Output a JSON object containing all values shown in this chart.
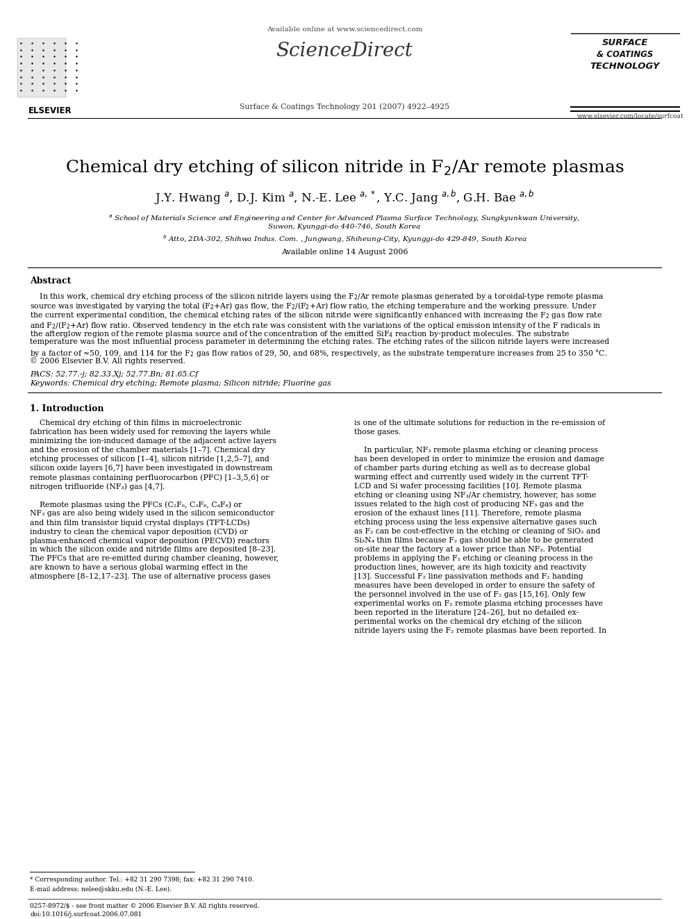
{
  "bg_color": "#ffffff",
  "sciencedirect_url": "Available online at www.sciencedirect.com",
  "journal": "Surface & Coatings Technology 201 (2007) 4922–4925",
  "elsevier_url": "www.elsevier.com/locate/surfcoat",
  "title": "Chemical dry etching of silicon nitride in F$_2$/Ar remote plasmas",
  "authors": "J.Y. Hwang $^a$, D.J. Kim $^a$, N.-E. Lee $^{a,*}$, Y.C. Jang $^{a,b}$, G.H. Bae $^{a,b}$",
  "affil_a": "$^a$ School of Materials Science and Engineering and Center for Advanced Plasma Surface Technology, Sungkyunkwan University,",
  "affil_a2": "Suwon, Kyunggi-do 440-746, South Korea",
  "affil_b": "$^b$ Atto, 2DA-302, Shihwa Indus. Com. , Jungwang, Shiheung-City, Kyunggi-do 429-849, South Korea",
  "available_online": "Available online 14 August 2006",
  "abstract_title": "Abstract",
  "abstract_line1": "    In this work, chemical dry etching process of the silicon nitride layers using the F$_2$/Ar remote plasmas generated by a toroidal-type remote plasma",
  "abstract_line2": "source was investigated by varying the total (F$_2$+Ar) gas flow, the F$_2$/(F$_2$+Ar) flow ratio, the etching temperature and the working pressure. Under",
  "abstract_line3": "the current experimental condition, the chemical etching rates of the silicon nitride were significantly enhanced with increasing the F$_2$ gas flow rate",
  "abstract_line4": "and F$_2$/(F$_2$+Ar) flow ratio. Observed tendency in the etch rate was consistent with the variations of the optical emission intensity of the F radicals in",
  "abstract_line5": "the afterglow region of the remote plasma source and of the concentration of the emitted SiF$_4$ reaction by-product molecules. The substrate",
  "abstract_line6": "temperature was the most influential process parameter in determining the etching rates. The etching rates of the silicon nitride layers were increased",
  "abstract_line7": "by a factor of ≈50, 109, and 114 for the F$_2$ gas flow ratios of 29, 50, and 68%, respectively, as the substrate temperature increases from 25 to 350 °C.",
  "abstract_line8": "© 2006 Elsevier B.V. All rights reserved.",
  "pacs": "PACS: 52.77.-j; 82.33.Xj; 52.77.Bn; 81.65.Cf",
  "keywords": "Keywords: Chemical dry etching; Remote plasma; Silicon nitride; Fluorine gas",
  "intro_title": "1. Introduction",
  "col1_lines": [
    "    Chemical dry etching of thin films in microelectronic",
    "fabrication has been widely used for removing the layers while",
    "minimizing the ion-induced damage of the adjacent active layers",
    "and the erosion of the chamber materials [1–7]. Chemical dry",
    "etching processes of silicon [1–4], silicon nitride [1,2,5–7], and",
    "silicon oxide layers [6,7] have been investigated in downstream",
    "remote plasmas containing perfluorocarbon (PFC) [1–3,5,6] or",
    "nitrogen trifluoride (NF₃) gas [4,7].",
    "",
    "    Remote plasmas using the PFCs (C₂F₆, C₃F₈, C₄F₈) or",
    "NF₃ gas are also being widely used in the silicon semiconductor",
    "and thin film transistor liquid crystal displays (TFT-LCDs)",
    "industry to clean the chemical vapor deposition (CVD) or",
    "plasma-enhanced chemical vapor deposition (PECVD) reactors",
    "in which the silicon oxide and nitride films are deposited [8–23].",
    "The PFCs that are re-emitted during chamber cleaning, however,",
    "are known to have a serious global warming effect in the",
    "atmosphere [8–12,17–23]. The use of alternative process gases"
  ],
  "col2_lines": [
    "is one of the ultimate solutions for reduction in the re-emission of",
    "those gases.",
    "",
    "    In particular, NF₃ remote plasma etching or cleaning process",
    "has been developed in order to minimize the erosion and damage",
    "of chamber parts during etching as well as to decrease global",
    "warming effect and currently used widely in the current TFT-",
    "LCD and Si wafer processing facilities [10]. Remote plasma",
    "etching or cleaning using NF₃/Ar chemistry, however, has some",
    "issues related to the high cost of producing NF₃ gas and the",
    "erosion of the exhaust lines [11]. Therefore, remote plasma",
    "etching process using the less expensive alternative gases such",
    "as F₂ can be cost-effective in the etching or cleaning of SiO₂ and",
    "Si₃N₄ thin films because F₂ gas should be able to be generated",
    "on-site near the factory at a lower price than NF₃. Potential",
    "problems in applying the F₂ etching or cleaning process in the",
    "production lines, however, are its high toxicity and reactivity",
    "[13]. Successful F₂ line passivation methods and F₂ handing",
    "measures have been developed in order to ensure the safety of",
    "the personnel involved in the use of F₂ gas [15,16]. Only few",
    "experimental works on F₂ remote plasma etching processes have",
    "been reported in the literature [24–26], but no detailed ex-",
    "perimental works on the chemical dry etching of the silicon",
    "nitride layers using the F₂ remote plasmas have been reported. In"
  ],
  "footnote_corr": "* Corresponding author. Tel.: +82 31 290 7398; fax: +82 31 290 7410.",
  "footnote_email": "E-mail address: nelee@skku.edu (N.-E. Lee).",
  "footnote_issn": "0257-8972/$ - see front matter © 2006 Elsevier B.V. All rights reserved.",
  "footnote_doi": "doi:10.1016/j.surfcoat.2006.07.081",
  "surface_line1": "SURFACE",
  "surface_line2": "& COATINGS",
  "surface_line3": "TECHNOLOGY"
}
